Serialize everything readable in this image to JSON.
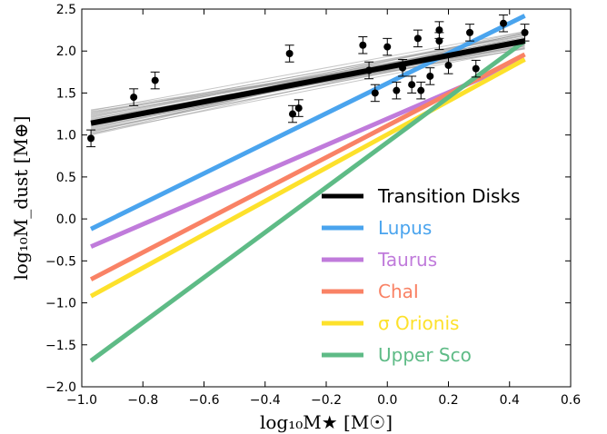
{
  "chart_data": {
    "type": "scatter",
    "xlabel": "log₁₀M★ [M☉]",
    "ylabel": "log₁₀M_dust [M⊕]",
    "xlim": [
      -1.0,
      0.6
    ],
    "ylim": [
      -2.0,
      2.5
    ],
    "xticks": [
      -1.0,
      -0.8,
      -0.6,
      -0.4,
      -0.2,
      0.0,
      0.2,
      0.4,
      0.6
    ],
    "yticks": [
      -2.0,
      -1.5,
      -1.0,
      -0.5,
      0.0,
      0.5,
      1.0,
      1.5,
      2.0,
      2.5
    ],
    "xtick_labels": [
      "−1.0",
      "−0.8",
      "−0.6",
      "−0.4",
      "−0.2",
      "0.0",
      "0.2",
      "0.4",
      "0.6"
    ],
    "ytick_labels": [
      "−2.0",
      "−1.5",
      "−1.0",
      "−0.5",
      "0.0",
      "0.5",
      "1.0",
      "1.5",
      "2.0",
      "2.5"
    ],
    "grid": false,
    "legend_placement": "lower-right",
    "points": [
      {
        "x": -0.97,
        "y": 0.96,
        "err": 0.1
      },
      {
        "x": -0.83,
        "y": 1.45,
        "err": 0.1
      },
      {
        "x": -0.76,
        "y": 1.65,
        "err": 0.1
      },
      {
        "x": -0.32,
        "y": 1.97,
        "err": 0.1
      },
      {
        "x": -0.31,
        "y": 1.25,
        "err": 0.1
      },
      {
        "x": -0.29,
        "y": 1.32,
        "err": 0.1
      },
      {
        "x": -0.08,
        "y": 2.07,
        "err": 0.1
      },
      {
        "x": -0.06,
        "y": 1.77,
        "err": 0.1
      },
      {
        "x": -0.04,
        "y": 1.5,
        "err": 0.1
      },
      {
        "x": 0.0,
        "y": 2.05,
        "err": 0.1
      },
      {
        "x": 0.03,
        "y": 1.53,
        "err": 0.1
      },
      {
        "x": 0.05,
        "y": 1.8,
        "err": 0.1
      },
      {
        "x": 0.08,
        "y": 1.6,
        "err": 0.1
      },
      {
        "x": 0.1,
        "y": 2.15,
        "err": 0.1
      },
      {
        "x": 0.11,
        "y": 1.53,
        "err": 0.1
      },
      {
        "x": 0.14,
        "y": 1.7,
        "err": 0.1
      },
      {
        "x": 0.17,
        "y": 2.25,
        "err": 0.1
      },
      {
        "x": 0.17,
        "y": 2.12,
        "err": 0.1
      },
      {
        "x": 0.2,
        "y": 1.83,
        "err": 0.1
      },
      {
        "x": 0.27,
        "y": 2.22,
        "err": 0.1
      },
      {
        "x": 0.29,
        "y": 1.79,
        "err": 0.1
      },
      {
        "x": 0.38,
        "y": 2.33,
        "err": 0.1
      },
      {
        "x": 0.45,
        "y": 2.22,
        "err": 0.1
      }
    ],
    "series": [
      {
        "name": "Transition Disks",
        "color": "#000000",
        "x": [
          -0.97,
          0.45
        ],
        "y": [
          1.14,
          2.12
        ]
      },
      {
        "name": "Lupus",
        "color": "#4aa4ee",
        "x": [
          -0.97,
          0.45
        ],
        "y": [
          -0.12,
          2.42
        ]
      },
      {
        "name": "Taurus",
        "color": "#c07bdb",
        "x": [
          -0.97,
          0.45
        ],
        "y": [
          -0.33,
          1.9
        ]
      },
      {
        "name": "ChaI",
        "color": "#f98265",
        "x": [
          -0.97,
          0.45
        ],
        "y": [
          -0.72,
          1.96
        ]
      },
      {
        "name": "σ Orionis",
        "color": "#fde12b",
        "x": [
          -0.97,
          0.45
        ],
        "y": [
          -0.92,
          1.9
        ]
      },
      {
        "name": "Upper Sco",
        "color": "#5ebb86",
        "x": [
          -0.97,
          0.45
        ],
        "y": [
          -1.69,
          2.12
        ]
      }
    ],
    "posterior_band": {
      "color": "#999999",
      "x": [
        -0.97,
        0.45
      ],
      "y_low": [
        1.0,
        2.02
      ],
      "y_high": [
        1.3,
        2.24
      ],
      "count": 30
    }
  }
}
